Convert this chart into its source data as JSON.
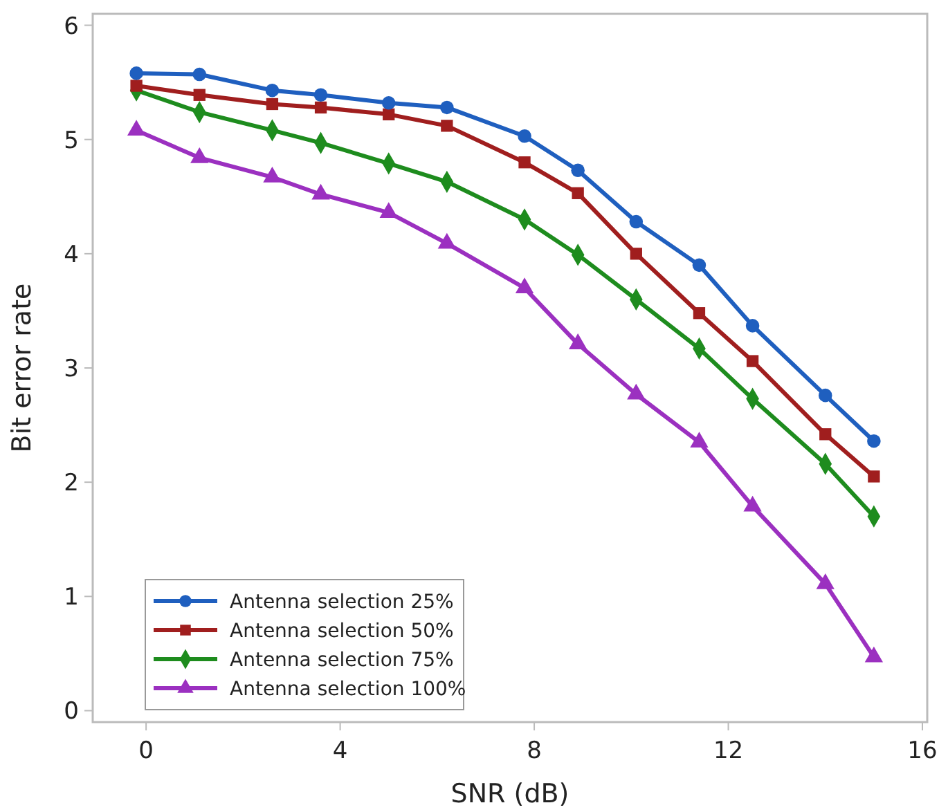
{
  "chart_data": {
    "type": "line",
    "xlabel": "SNR (dB)",
    "ylabel": "Bit error rate",
    "x": [
      -0.2,
      1.1,
      2.6,
      3.6,
      5.0,
      6.2,
      7.8,
      8.9,
      10.1,
      11.4,
      12.5,
      14.0,
      15.0
    ],
    "series": [
      {
        "name": "Antenna selection 25%",
        "color": "#1f5fbf",
        "marker": "circle",
        "values": [
          5.58,
          5.57,
          5.43,
          5.39,
          5.32,
          5.28,
          5.03,
          4.73,
          4.28,
          3.9,
          3.37,
          2.76,
          2.36
        ]
      },
      {
        "name": "Antenna selection 50%",
        "color": "#a01e1e",
        "marker": "square",
        "values": [
          5.47,
          5.39,
          5.31,
          5.28,
          5.22,
          5.12,
          4.8,
          4.53,
          4.0,
          3.48,
          3.06,
          2.42,
          2.05
        ]
      },
      {
        "name": "Antenna selection 75%",
        "color": "#1e8c1e",
        "marker": "diamond",
        "values": [
          5.43,
          5.24,
          5.08,
          4.97,
          4.79,
          4.63,
          4.3,
          3.99,
          3.6,
          3.17,
          2.73,
          2.16,
          1.7
        ]
      },
      {
        "name": "Antenna selection 100%",
        "color": "#9b30c0",
        "marker": "triangle",
        "values": [
          5.08,
          4.84,
          4.67,
          4.52,
          4.36,
          4.09,
          3.7,
          3.21,
          2.77,
          2.35,
          1.79,
          1.11,
          0.47
        ]
      }
    ],
    "xlim": [
      -1.1,
      16.1
    ],
    "ylim": [
      -0.1,
      6.1
    ],
    "xticks": [
      0,
      4,
      8,
      12,
      16
    ],
    "yticks": [
      0,
      1,
      2,
      3,
      4,
      5,
      6
    ],
    "grid": false,
    "legend": "bottom left",
    "line_style": "solid"
  }
}
